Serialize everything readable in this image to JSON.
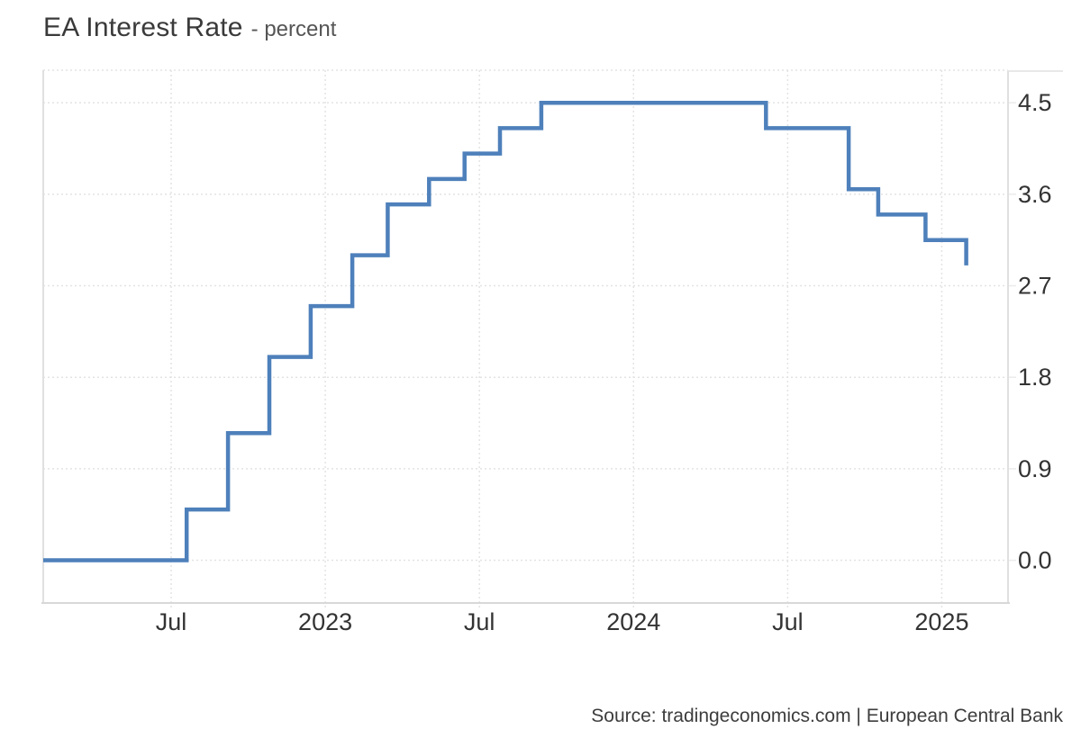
{
  "header": {
    "title": "EA Interest Rate",
    "subtitle": "- percent"
  },
  "footer": {
    "source": "Source: tradingeconomics.com | European Central Bank"
  },
  "colors": {
    "line": "#4e80bb",
    "grid": "#e3e3e3",
    "axis_side": "#e0e0e0",
    "axis_bottom": "#d8d8d8",
    "axis_tick": "#ebebeb",
    "label": "#333333",
    "background": "#ffffff"
  },
  "chart_data": {
    "type": "line",
    "step": "after",
    "title": "EA Interest Rate",
    "ylabel_unit": "percent",
    "legend": false,
    "grid": true,
    "x_domain_decimal_years": [
      2022.085,
      2025.215
    ],
    "y_domain": [
      -0.42,
      4.82
    ],
    "x_ticks": [
      {
        "t": 2022.5,
        "label": "Jul"
      },
      {
        "t": 2023.0,
        "label": "2023"
      },
      {
        "t": 2023.5,
        "label": "Jul"
      },
      {
        "t": 2024.0,
        "label": "2024"
      },
      {
        "t": 2024.5,
        "label": "Jul"
      },
      {
        "t": 2025.0,
        "label": "2025"
      }
    ],
    "y_ticks": [
      {
        "value": 0.0,
        "label": "0.0"
      },
      {
        "value": 0.9,
        "label": "0.9"
      },
      {
        "value": 1.8,
        "label": "1.8"
      },
      {
        "value": 2.7,
        "label": "2.7"
      },
      {
        "value": 3.6,
        "label": "3.6"
      },
      {
        "value": 4.5,
        "label": "4.5"
      }
    ],
    "series": [
      {
        "name": "EA Interest Rate",
        "color": "#4e80bb",
        "points": [
          {
            "date": "2022-02-01",
            "value": 0.0
          },
          {
            "date": "2022-07-21",
            "value": 0.5
          },
          {
            "date": "2022-09-08",
            "value": 1.25
          },
          {
            "date": "2022-10-27",
            "value": 2.0
          },
          {
            "date": "2022-12-15",
            "value": 2.5
          },
          {
            "date": "2023-02-02",
            "value": 3.0
          },
          {
            "date": "2023-03-16",
            "value": 3.5
          },
          {
            "date": "2023-05-04",
            "value": 3.75
          },
          {
            "date": "2023-06-15",
            "value": 4.0
          },
          {
            "date": "2023-07-27",
            "value": 4.25
          },
          {
            "date": "2023-09-14",
            "value": 4.5
          },
          {
            "date": "2024-06-06",
            "value": 4.25
          },
          {
            "date": "2024-09-12",
            "value": 3.65
          },
          {
            "date": "2024-10-17",
            "value": 3.4
          },
          {
            "date": "2024-12-12",
            "value": 3.15
          },
          {
            "date": "2025-01-30",
            "value": 2.9
          }
        ]
      }
    ]
  }
}
